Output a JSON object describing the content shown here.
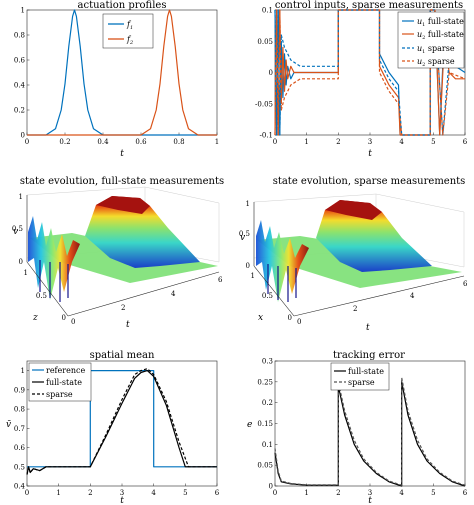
{
  "chart_data": [
    {
      "type": "line",
      "title": "actuation profiles",
      "xlabel": "t",
      "ylabel": "",
      "xlim": [
        0,
        1
      ],
      "ylim": [
        0,
        1
      ],
      "xticks": [
        "0",
        "0.2",
        "0.4",
        "0.6",
        "0.8",
        "1"
      ],
      "yticks": [
        "0",
        "0.2",
        "0.4",
        "0.6",
        "0.8",
        "1"
      ],
      "legend": "top-center",
      "series": [
        {
          "name": "f1",
          "color": "#0072BD",
          "x": [
            0.0,
            0.1,
            0.15,
            0.18,
            0.2,
            0.22,
            0.24,
            0.25,
            0.26,
            0.28,
            0.3,
            0.32,
            0.35,
            0.4,
            0.5,
            1.0
          ],
          "y": [
            0.0,
            0.0,
            0.05,
            0.2,
            0.41,
            0.71,
            0.95,
            1.0,
            0.95,
            0.71,
            0.41,
            0.2,
            0.05,
            0.0,
            0.0,
            0.0
          ]
        },
        {
          "name": "f2",
          "color": "#D95319",
          "x": [
            0.0,
            0.5,
            0.6,
            0.65,
            0.68,
            0.7,
            0.72,
            0.74,
            0.75,
            0.76,
            0.78,
            0.8,
            0.82,
            0.85,
            0.9,
            1.0
          ],
          "y": [
            0.0,
            0.0,
            0.0,
            0.05,
            0.2,
            0.41,
            0.71,
            0.95,
            1.0,
            0.95,
            0.71,
            0.41,
            0.2,
            0.05,
            0.0,
            0.0
          ]
        }
      ]
    },
    {
      "type": "line",
      "title": "control inputs, sparse measurements",
      "xlabel": "t",
      "ylabel": "",
      "xlim": [
        0,
        6
      ],
      "ylim": [
        -0.1,
        0.1
      ],
      "xticks": [
        "0",
        "1",
        "2",
        "3",
        "4",
        "5",
        "6"
      ],
      "yticks": [
        "-0.1",
        "-0.05",
        "0",
        "0.05",
        "0.1"
      ],
      "legend": "top-right",
      "series": [
        {
          "name": "u1 full-state",
          "color": "#0072BD",
          "style": "solid",
          "x": [
            0,
            0.05,
            0.1,
            0.15,
            0.2,
            0.25,
            0.3,
            0.35,
            0.4,
            0.5,
            0.6,
            1.0,
            2.0,
            2.0,
            3.3,
            3.3,
            3.6,
            3.9,
            3.95,
            4.05,
            4.1,
            4.9,
            4.9,
            5.05,
            5.2,
            5.35,
            5.5,
            5.7,
            6.0
          ],
          "y": [
            0.1,
            -0.1,
            0.1,
            -0.1,
            0.05,
            -0.04,
            0.03,
            -0.02,
            0.01,
            -0.01,
            0.0,
            0.0,
            0.0,
            0.1,
            0.1,
            0.03,
            0.0,
            -0.02,
            -0.1,
            -0.1,
            -0.1,
            -0.1,
            0.1,
            0.1,
            -0.1,
            0.07,
            0.02,
            0.01,
            0.0
          ]
        },
        {
          "name": "u2 full-state",
          "color": "#D95319",
          "style": "solid",
          "x": [
            0,
            0.05,
            0.1,
            0.15,
            0.2,
            0.25,
            0.3,
            0.35,
            0.4,
            0.5,
            0.6,
            1.0,
            2.0,
            2.0,
            3.3,
            3.3,
            3.6,
            3.9,
            3.95,
            4.05,
            4.1,
            4.9,
            4.9,
            5.05,
            5.2,
            5.35,
            5.5,
            5.7,
            6.0
          ],
          "y": [
            -0.1,
            0.1,
            -0.1,
            0.1,
            -0.05,
            0.04,
            -0.03,
            0.02,
            -0.01,
            0.01,
            0.0,
            0.0,
            0.0,
            0.1,
            0.1,
            0.01,
            -0.02,
            -0.04,
            -0.1,
            -0.1,
            -0.1,
            -0.1,
            0.1,
            0.1,
            -0.1,
            0.05,
            0.0,
            -0.01,
            -0.01
          ]
        },
        {
          "name": "u1 sparse",
          "color": "#0072BD",
          "style": "dashed",
          "x": [
            0,
            0.05,
            0.1,
            0.15,
            0.2,
            0.3,
            0.5,
            0.8,
            1.0,
            2.0,
            2.0,
            3.3,
            3.3,
            3.6,
            3.9,
            4.0,
            4.9,
            4.9,
            5.05,
            5.3,
            5.5,
            6.0
          ],
          "y": [
            0.1,
            -0.1,
            0.1,
            -0.1,
            0.06,
            0.04,
            0.02,
            0.01,
            0.01,
            0.01,
            0.1,
            0.1,
            0.02,
            -0.01,
            -0.03,
            -0.1,
            -0.1,
            0.1,
            0.1,
            -0.1,
            0.02,
            0.01
          ]
        },
        {
          "name": "u2 sparse",
          "color": "#D95319",
          "style": "dashed",
          "x": [
            0,
            0.05,
            0.1,
            0.15,
            0.2,
            0.3,
            0.5,
            0.8,
            1.0,
            2.0,
            2.0,
            3.3,
            3.3,
            3.6,
            3.9,
            4.0,
            4.9,
            4.9,
            5.05,
            5.3,
            5.5,
            6.0
          ],
          "y": [
            -0.1,
            0.1,
            -0.1,
            0.1,
            -0.06,
            -0.04,
            -0.02,
            -0.01,
            -0.01,
            -0.01,
            0.1,
            0.1,
            0.0,
            -0.03,
            -0.05,
            -0.1,
            -0.1,
            0.1,
            0.1,
            -0.1,
            0.0,
            -0.01
          ]
        }
      ]
    },
    {
      "type": "surface",
      "title": "state evolution, full-state measurements",
      "xlabel": "t",
      "ylabel": "z",
      "zlabel": "v",
      "xticks": [
        "0",
        "2",
        "4",
        "6"
      ],
      "yticks": [
        "0",
        "0.5",
        "1"
      ],
      "zticks": [
        "0",
        "0.5",
        "1"
      ]
    },
    {
      "type": "surface",
      "title": "state evolution, sparse measurements",
      "xlabel": "t",
      "ylabel": "x",
      "zlabel": "v",
      "xticks": [
        "0",
        "2",
        "4",
        "6"
      ],
      "yticks": [
        "0",
        "0.5",
        "1"
      ],
      "zticks": [
        "0",
        "0.5",
        "1"
      ]
    },
    {
      "type": "line",
      "title": "spatial mean",
      "xlabel": "t",
      "ylabel": "v̄",
      "xlim": [
        0,
        6
      ],
      "ylim": [
        0.4,
        1.05
      ],
      "xticks": [
        "0",
        "1",
        "2",
        "3",
        "4",
        "5",
        "6"
      ],
      "yticks": [
        "0.4",
        "0.5",
        "0.6",
        "0.7",
        "0.8",
        "0.9",
        "1"
      ],
      "legend": "top-left",
      "series": [
        {
          "name": "reference",
          "color": "#0072BD",
          "style": "solid",
          "x": [
            0,
            2,
            2,
            4,
            4,
            6
          ],
          "y": [
            0.5,
            0.5,
            1.0,
            1.0,
            0.5,
            0.5
          ]
        },
        {
          "name": "full-state",
          "color": "#000000",
          "style": "solid",
          "x": [
            0,
            0.05,
            0.1,
            0.2,
            0.4,
            0.6,
            1.0,
            2.0,
            2.5,
            3.0,
            3.4,
            3.6,
            3.8,
            4.0,
            4.4,
            4.8,
            5.0,
            6.0
          ],
          "y": [
            0.46,
            0.5,
            0.47,
            0.49,
            0.48,
            0.5,
            0.5,
            0.5,
            0.66,
            0.83,
            0.96,
            0.99,
            1.0,
            0.97,
            0.82,
            0.6,
            0.5,
            0.5
          ]
        },
        {
          "name": "sparse",
          "color": "#000000",
          "style": "dashed",
          "x": [
            0,
            0.05,
            0.1,
            0.2,
            0.4,
            0.6,
            1.0,
            2.0,
            2.5,
            3.0,
            3.4,
            3.6,
            3.8,
            4.0,
            4.4,
            4.8,
            5.1,
            6.0
          ],
          "y": [
            0.46,
            0.5,
            0.47,
            0.49,
            0.48,
            0.5,
            0.5,
            0.5,
            0.67,
            0.85,
            0.98,
            1.0,
            1.01,
            0.98,
            0.84,
            0.63,
            0.5,
            0.5
          ]
        }
      ]
    },
    {
      "type": "line",
      "title": "tracking error",
      "xlabel": "t",
      "ylabel": "e",
      "xlim": [
        0,
        6
      ],
      "ylim": [
        0,
        0.3
      ],
      "xticks": [
        "0",
        "1",
        "2",
        "3",
        "4",
        "5",
        "6"
      ],
      "yticks": [
        "0",
        "0.05",
        "0.1",
        "0.15",
        "0.2",
        "0.25",
        "0.3"
      ],
      "legend": "top-center",
      "series": [
        {
          "name": "full-state",
          "color": "#000000",
          "style": "solid",
          "x": [
            0,
            0.1,
            0.2,
            0.5,
            1.0,
            2.0,
            2.0,
            2.2,
            2.5,
            2.8,
            3.2,
            3.6,
            4.0,
            4.0,
            4.2,
            4.5,
            4.8,
            5.2,
            5.6,
            6.0
          ],
          "y": [
            0.08,
            0.03,
            0.01,
            0.005,
            0.002,
            0.002,
            0.24,
            0.17,
            0.1,
            0.06,
            0.03,
            0.01,
            0.0,
            0.25,
            0.17,
            0.1,
            0.06,
            0.03,
            0.01,
            0.0
          ]
        },
        {
          "name": "sparse",
          "color": "#555555",
          "style": "dashed",
          "x": [
            0,
            0.1,
            0.2,
            0.5,
            1.0,
            2.0,
            2.0,
            2.2,
            2.5,
            2.8,
            3.2,
            3.6,
            4.0,
            4.0,
            4.2,
            4.5,
            4.8,
            5.2,
            5.6,
            6.0
          ],
          "y": [
            0.09,
            0.035,
            0.012,
            0.006,
            0.003,
            0.003,
            0.25,
            0.18,
            0.11,
            0.065,
            0.033,
            0.012,
            0.002,
            0.26,
            0.18,
            0.11,
            0.065,
            0.033,
            0.012,
            0.002
          ]
        }
      ]
    }
  ]
}
